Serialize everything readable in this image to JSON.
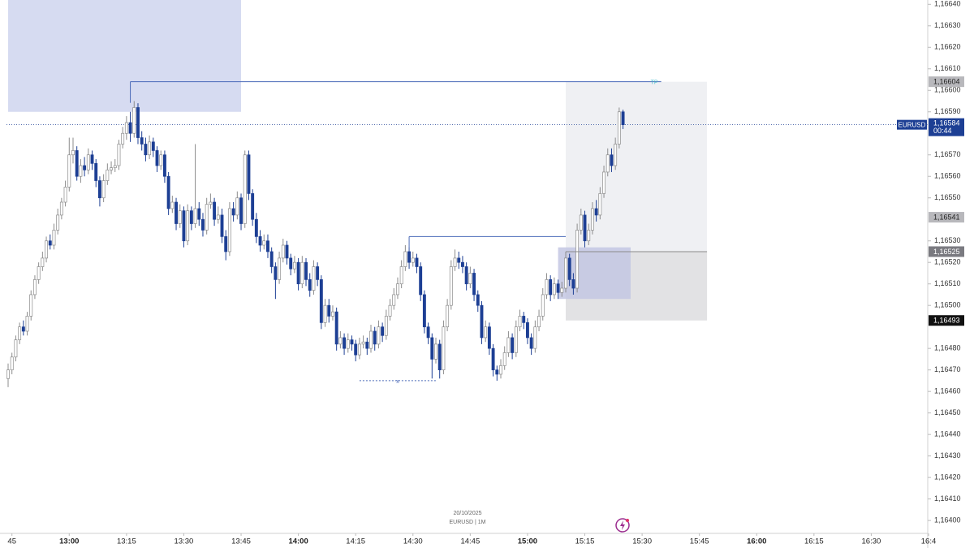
{
  "chart_data": {
    "type": "candlestick",
    "symbol_info": "EURUSD | 1M",
    "date": "20/10/2025",
    "up_color": "#ffffff",
    "up_border": "#8c8c8c",
    "down_color": "#1d3f94",
    "xlim": [
      "12:44",
      "16:45"
    ],
    "ylim": [
      1.16394,
      1.16642
    ],
    "xticks": [
      {
        "value": "12:45",
        "label": "45"
      },
      "13:00",
      "13:15",
      "13:30",
      "13:45",
      "14:00",
      "14:15",
      "14:30",
      "14:45",
      "15:00",
      "15:15",
      "15:30",
      "15:45",
      "16:00",
      "16:15",
      "16:30",
      {
        "value": "16:45",
        "label": "16:4"
      }
    ],
    "yticks": [
      {
        "value": 1.1664,
        "label": "1,16640"
      },
      {
        "value": 1.1663,
        "label": "1,16630"
      },
      {
        "value": 1.1662,
        "label": "1,16620"
      },
      {
        "value": 1.1661,
        "label": "1,16610"
      },
      {
        "value": 1.166,
        "label": "1,16600"
      },
      {
        "value": 1.1659,
        "label": "1,16590"
      },
      {
        "value": 1.1657,
        "label": "1,16570"
      },
      {
        "value": 1.1656,
        "label": "1,16560"
      },
      {
        "value": 1.1655,
        "label": "1,16550"
      },
      {
        "value": 1.1653,
        "label": "1,16530"
      },
      {
        "value": 1.1652,
        "label": "1,16520"
      },
      {
        "value": 1.1651,
        "label": "1,16510"
      },
      {
        "value": 1.165,
        "label": "1,16500"
      },
      {
        "value": 1.1648,
        "label": "1,16480"
      },
      {
        "value": 1.1647,
        "label": "1,16470"
      },
      {
        "value": 1.1646,
        "label": "1,16460"
      },
      {
        "value": 1.1645,
        "label": "1,16450"
      },
      {
        "value": 1.1644,
        "label": "1,16440"
      },
      {
        "value": 1.1643,
        "label": "1,16430"
      },
      {
        "value": 1.1642,
        "label": "1,16420"
      },
      {
        "value": 1.1641,
        "label": "1,16410"
      },
      {
        "value": 1.164,
        "label": "1,16400"
      }
    ],
    "x": [
      "12:44",
      "12:45",
      "12:46",
      "12:47",
      "12:48",
      "12:49",
      "12:50",
      "12:51",
      "12:52",
      "12:53",
      "12:54",
      "12:55",
      "12:56",
      "12:57",
      "12:58",
      "12:59",
      "13:00",
      "13:01",
      "13:02",
      "13:03",
      "13:04",
      "13:05",
      "13:06",
      "13:07",
      "13:08",
      "13:09",
      "13:10",
      "13:11",
      "13:12",
      "13:13",
      "13:14",
      "13:15",
      "13:16",
      "13:17",
      "13:18",
      "13:19",
      "13:20",
      "13:21",
      "13:22",
      "13:23",
      "13:24",
      "13:25",
      "13:26",
      "13:27",
      "13:28",
      "13:29",
      "13:30",
      "13:31",
      "13:32",
      "13:33",
      "13:34",
      "13:35",
      "13:36",
      "13:37",
      "13:38",
      "13:39",
      "13:40",
      "13:41",
      "13:42",
      "13:43",
      "13:44",
      "13:45",
      "13:46",
      "13:47",
      "13:48",
      "13:49",
      "13:50",
      "13:51",
      "13:52",
      "13:53",
      "13:54",
      "13:55",
      "13:56",
      "13:57",
      "13:58",
      "13:59",
      "14:00",
      "14:01",
      "14:02",
      "14:03",
      "14:04",
      "14:05",
      "14:06",
      "14:07",
      "14:08",
      "14:09",
      "14:10",
      "14:11",
      "14:12",
      "14:13",
      "14:14",
      "14:15",
      "14:16",
      "14:17",
      "14:18",
      "14:19",
      "14:20",
      "14:21",
      "14:22",
      "14:23",
      "14:24",
      "14:25",
      "14:26",
      "14:27",
      "14:28",
      "14:29",
      "14:30",
      "14:31",
      "14:32",
      "14:33",
      "14:34",
      "14:35",
      "14:36",
      "14:37",
      "14:38",
      "14:39",
      "14:40",
      "14:41",
      "14:42",
      "14:43",
      "14:44",
      "14:45",
      "14:46",
      "14:47",
      "14:48",
      "14:49",
      "14:50",
      "14:51",
      "14:52",
      "14:53",
      "14:54",
      "14:55",
      "14:56",
      "14:57",
      "14:58",
      "14:59",
      "15:00",
      "15:01",
      "15:02",
      "15:03",
      "15:04",
      "15:05",
      "15:06",
      "15:07",
      "15:08",
      "15:09",
      "15:10",
      "15:11",
      "15:12",
      "15:13",
      "15:14",
      "15:15",
      "15:16",
      "15:17",
      "15:18",
      "15:19",
      "15:20",
      "15:21",
      "15:22",
      "15:23",
      "15:24",
      "15:25"
    ],
    "open": [
      1.16466,
      1.1647,
      1.16476,
      1.16484,
      1.1649,
      1.16488,
      1.16495,
      1.16505,
      1.16512,
      1.16518,
      1.16522,
      1.1653,
      1.16528,
      1.16535,
      1.16542,
      1.16548,
      1.16555,
      1.1657,
      1.16572,
      1.1656,
      1.16565,
      1.16563,
      1.1657,
      1.16566,
      1.16558,
      1.1655,
      1.16558,
      1.16563,
      1.16564,
      1.16565,
      1.16575,
      1.1658,
      1.16585,
      1.1658,
      1.16592,
      1.16578,
      1.16575,
      1.1657,
      1.16576,
      1.16572,
      1.16565,
      1.1657,
      1.1656,
      1.16545,
      1.16548,
      1.16538,
      1.16544,
      1.1653,
      1.16544,
      1.16538,
      1.16545,
      1.1654,
      1.16535,
      1.16547,
      1.16548,
      1.1654,
      1.16542,
      1.16532,
      1.16525,
      1.16545,
      1.16542,
      1.1655,
      1.16538,
      1.1657,
      1.16552,
      1.1654,
      1.16532,
      1.16528,
      1.1653,
      1.16525,
      1.16518,
      1.16512,
      1.16522,
      1.16528,
      1.16522,
      1.16517,
      1.1652,
      1.1651,
      1.1652,
      1.16512,
      1.16507,
      1.16518,
      1.16512,
      1.16492,
      1.165,
      1.16495,
      1.16497,
      1.16482,
      1.16485,
      1.1648,
      1.16484,
      1.16482,
      1.16477,
      1.16482,
      1.16483,
      1.1648,
      1.16488,
      1.16482,
      1.1649,
      1.16486,
      1.16495,
      1.165,
      1.16505,
      1.1651,
      1.16518,
      1.16525,
      1.1652,
      1.16522,
      1.16518,
      1.16505,
      1.1649,
      1.16485,
      1.16475,
      1.16482,
      1.1647,
      1.1649,
      1.165,
      1.16518,
      1.16522,
      1.1652,
      1.16518,
      1.1651,
      1.16515,
      1.16505,
      1.165,
      1.16485,
      1.1649,
      1.1648,
      1.1647,
      1.16468,
      1.16472,
      1.16478,
      1.16485,
      1.16478,
      1.1649,
      1.16495,
      1.16492,
      1.16485,
      1.1648,
      1.1649,
      1.16495,
      1.16505,
      1.16512,
      1.16505,
      1.1651,
      1.16506,
      1.16508,
      1.16522,
      1.16512,
      1.16508,
      1.16535,
      1.16542,
      1.1653,
      1.16535,
      1.16545,
      1.16542,
      1.16552,
      1.16562,
      1.1657,
      1.16565,
      1.16575,
      1.1659
    ],
    "high": [
      1.16473,
      1.16478,
      1.16486,
      1.16492,
      1.16493,
      1.16497,
      1.16507,
      1.16514,
      1.1652,
      1.16525,
      1.16532,
      1.16533,
      1.16538,
      1.16545,
      1.1655,
      1.16558,
      1.16578,
      1.16578,
      1.16574,
      1.16568,
      1.16569,
      1.16573,
      1.16572,
      1.16568,
      1.1656,
      1.16561,
      1.16566,
      1.16567,
      1.16568,
      1.16577,
      1.16583,
      1.16588,
      1.1659,
      1.16595,
      1.16594,
      1.16581,
      1.16578,
      1.16579,
      1.16578,
      1.16574,
      1.16572,
      1.16572,
      1.16562,
      1.16551,
      1.1655,
      1.16547,
      1.16546,
      1.16547,
      1.16546,
      1.16575,
      1.16548,
      1.16543,
      1.1655,
      1.16552,
      1.1655,
      1.16546,
      1.16545,
      1.16535,
      1.16548,
      1.16548,
      1.16553,
      1.16552,
      1.16572,
      1.16572,
      1.16554,
      1.16543,
      1.16535,
      1.16533,
      1.16533,
      1.16527,
      1.1652,
      1.16525,
      1.16531,
      1.1653,
      1.16524,
      1.16523,
      1.16522,
      1.16523,
      1.16522,
      1.16515,
      1.16521,
      1.1652,
      1.16514,
      1.16503,
      1.16503,
      1.165,
      1.16499,
      1.16488,
      1.16487,
      1.16487,
      1.16486,
      1.16484,
      1.16485,
      1.16486,
      1.16485,
      1.16491,
      1.1649,
      1.16493,
      1.16492,
      1.16498,
      1.16503,
      1.16508,
      1.16513,
      1.16521,
      1.16528,
      1.16527,
      1.16525,
      1.16524,
      1.1652,
      1.16507,
      1.16492,
      1.16487,
      1.16485,
      1.16484,
      1.16493,
      1.16503,
      1.16521,
      1.16526,
      1.16525,
      1.16523,
      1.1652,
      1.16518,
      1.16517,
      1.16507,
      1.16502,
      1.16493,
      1.16492,
      1.16482,
      1.16472,
      1.16475,
      1.16481,
      1.16488,
      1.16487,
      1.16493,
      1.16498,
      1.16497,
      1.16494,
      1.16487,
      1.16493,
      1.16498,
      1.16508,
      1.16515,
      1.16514,
      1.16513,
      1.16512,
      1.16511,
      1.16525,
      1.16524,
      1.16515,
      1.16538,
      1.16545,
      1.16544,
      1.16538,
      1.16548,
      1.16549,
      1.16555,
      1.16565,
      1.16573,
      1.16573,
      1.16578,
      1.16592,
      1.16591
    ],
    "low": [
      1.16462,
      1.16468,
      1.16474,
      1.16482,
      1.16486,
      1.16486,
      1.16493,
      1.16503,
      1.1651,
      1.16516,
      1.1652,
      1.16526,
      1.16526,
      1.16533,
      1.1654,
      1.16546,
      1.16553,
      1.16566,
      1.16558,
      1.16557,
      1.1656,
      1.16561,
      1.16563,
      1.16555,
      1.16546,
      1.16548,
      1.16556,
      1.16561,
      1.16562,
      1.16563,
      1.16573,
      1.16577,
      1.16576,
      1.16578,
      1.16575,
      1.16572,
      1.16567,
      1.16568,
      1.16569,
      1.16562,
      1.16563,
      1.16557,
      1.16542,
      1.16543,
      1.16535,
      1.16536,
      1.16527,
      1.16528,
      1.16535,
      1.16536,
      1.16537,
      1.16532,
      1.16533,
      1.16545,
      1.16537,
      1.16538,
      1.16529,
      1.16521,
      1.16523,
      1.16539,
      1.1654,
      1.16535,
      1.16536,
      1.16549,
      1.16537,
      1.16529,
      1.16525,
      1.16526,
      1.16522,
      1.16515,
      1.16503,
      1.1651,
      1.1652,
      1.16519,
      1.16514,
      1.16515,
      1.16507,
      1.16508,
      1.16509,
      1.16504,
      1.16505,
      1.16509,
      1.16489,
      1.1649,
      1.16492,
      1.16493,
      1.16479,
      1.1648,
      1.16477,
      1.16478,
      1.16479,
      1.16474,
      1.16475,
      1.1648,
      1.16477,
      1.16478,
      1.16479,
      1.1648,
      1.16483,
      1.16484,
      1.16493,
      1.16498,
      1.16503,
      1.16508,
      1.16516,
      1.16517,
      1.16518,
      1.16515,
      1.16502,
      1.16487,
      1.16482,
      1.16466,
      1.16473,
      1.16466,
      1.16468,
      1.16488,
      1.16498,
      1.16516,
      1.16517,
      1.16515,
      1.16507,
      1.16508,
      1.16502,
      1.16497,
      1.16482,
      1.16483,
      1.16477,
      1.16467,
      1.16465,
      1.16466,
      1.1647,
      1.16476,
      1.16475,
      1.16476,
      1.16488,
      1.16489,
      1.16482,
      1.16477,
      1.16478,
      1.16488,
      1.16493,
      1.16503,
      1.16502,
      1.16503,
      1.16503,
      1.16504,
      1.16506,
      1.16509,
      1.16505,
      1.16506,
      1.16533,
      1.16527,
      1.16528,
      1.16533,
      1.16539,
      1.1654,
      1.1655,
      1.1656,
      1.16562,
      1.16563,
      1.16573,
      1.16582
    ],
    "close": [
      1.1647,
      1.16476,
      1.16484,
      1.1649,
      1.16488,
      1.16495,
      1.16505,
      1.16512,
      1.16518,
      1.16522,
      1.1653,
      1.16528,
      1.16535,
      1.16542,
      1.16548,
      1.16555,
      1.1657,
      1.16572,
      1.1656,
      1.16565,
      1.16563,
      1.1657,
      1.16566,
      1.16558,
      1.1655,
      1.16558,
      1.16563,
      1.16564,
      1.16565,
      1.16575,
      1.1658,
      1.16585,
      1.1658,
      1.16592,
      1.16578,
      1.16575,
      1.1657,
      1.16576,
      1.16572,
      1.16565,
      1.1657,
      1.1656,
      1.16545,
      1.16548,
      1.16538,
      1.16544,
      1.1653,
      1.16544,
      1.16538,
      1.16545,
      1.1654,
      1.16535,
      1.16547,
      1.16548,
      1.1654,
      1.16542,
      1.16532,
      1.16525,
      1.16545,
      1.16542,
      1.1655,
      1.16538,
      1.1657,
      1.16552,
      1.1654,
      1.16532,
      1.16528,
      1.1653,
      1.16525,
      1.16518,
      1.16512,
      1.16522,
      1.16528,
      1.16522,
      1.16517,
      1.1652,
      1.1651,
      1.1652,
      1.16512,
      1.16507,
      1.16518,
      1.16512,
      1.16492,
      1.165,
      1.16495,
      1.16497,
      1.16482,
      1.16485,
      1.1648,
      1.16484,
      1.16482,
      1.16477,
      1.16482,
      1.16483,
      1.1648,
      1.16488,
      1.16482,
      1.1649,
      1.16486,
      1.16495,
      1.165,
      1.16505,
      1.1651,
      1.16518,
      1.16525,
      1.1652,
      1.16522,
      1.16518,
      1.16505,
      1.1649,
      1.16485,
      1.16475,
      1.16482,
      1.1647,
      1.1649,
      1.165,
      1.16518,
      1.16522,
      1.1652,
      1.16518,
      1.1651,
      1.16515,
      1.16505,
      1.165,
      1.16485,
      1.1649,
      1.1648,
      1.1647,
      1.16468,
      1.16472,
      1.16478,
      1.16485,
      1.16478,
      1.1649,
      1.16495,
      1.16492,
      1.16485,
      1.1648,
      1.1649,
      1.16495,
      1.16505,
      1.16512,
      1.16505,
      1.1651,
      1.16506,
      1.16508,
      1.16522,
      1.16512,
      1.16508,
      1.16535,
      1.16542,
      1.1653,
      1.16535,
      1.16545,
      1.16542,
      1.16552,
      1.16562,
      1.1657,
      1.16565,
      1.16575,
      1.1659,
      1.16584
    ],
    "zones": [
      {
        "x": [
          "12:44",
          "13:45"
        ],
        "price": [
          1.1659,
          1.16642
        ],
        "color": "#d6dbf1"
      },
      {
        "x": [
          "15:10",
          "15:47"
        ],
        "price": [
          1.16525,
          1.16604
        ],
        "color": "#eff0f3"
      },
      {
        "x": [
          "15:10",
          "15:47"
        ],
        "price": [
          1.16493,
          1.16525
        ],
        "color": "#e2e2e4"
      },
      {
        "x": [
          "15:08",
          "15:27"
        ],
        "price": [
          1.16503,
          1.16527
        ],
        "color": "#c3c7e3"
      }
    ],
    "lines": [
      {
        "label": "TP",
        "x": [
          "13:16",
          "15:35"
        ],
        "price": 1.16604,
        "color": "#4a69b8"
      },
      {
        "x": [
          "14:29",
          "15:10"
        ],
        "price": 1.16532,
        "color": "#4a69b8"
      },
      {
        "label": "x",
        "x": [
          "14:16",
          "14:36"
        ],
        "price": 1.16465,
        "color": "#4a69b8",
        "dashed": true
      },
      {
        "x": [
          "15:10",
          "15:47"
        ],
        "price": 1.16525,
        "color": "#8a8a8a"
      }
    ],
    "current": {
      "symbol": "EURUSD",
      "value": 1.16584,
      "label": "1,16584",
      "countdown": "00:44",
      "color": "#1d3f94"
    },
    "price_tags": [
      {
        "value": 1.16604,
        "label": "1,16604",
        "color": "#b8b8bc"
      },
      {
        "value": 1.16541,
        "label": "1,16541",
        "color": "#b8b8bc"
      },
      {
        "value": 1.16525,
        "label": "1,16525",
        "color": "#7a7a80"
      },
      {
        "value": 1.16493,
        "label": "1,16493",
        "color": "#111111"
      }
    ]
  }
}
